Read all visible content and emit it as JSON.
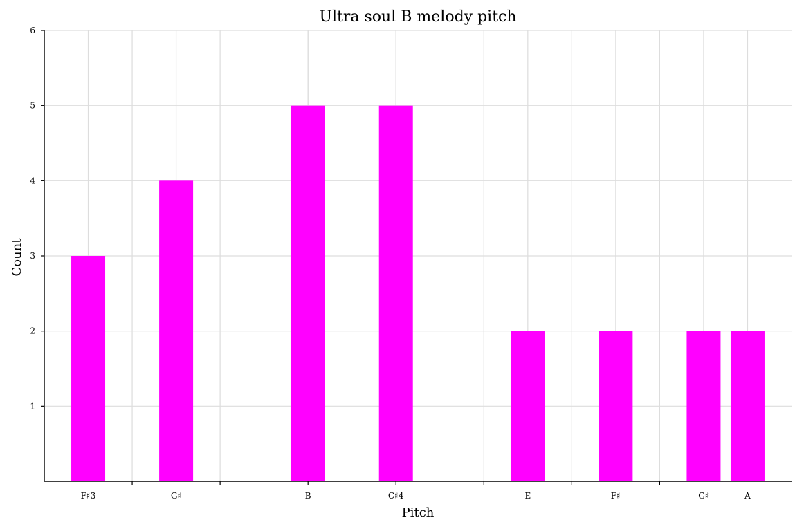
{
  "chart_data": {
    "type": "bar",
    "title": "Ultra soul B melody pitch",
    "xlabel": "Pitch",
    "ylabel": "Count",
    "ylim": [
      0,
      6
    ],
    "yticks": [
      1,
      2,
      3,
      4,
      5,
      6
    ],
    "x_range": [
      54,
      71
    ],
    "x_gridlines": [
      56,
      58,
      60,
      62,
      64,
      66,
      68
    ],
    "color": "#ff00ff",
    "grid": true,
    "bars": [
      {
        "label": "F♯3",
        "x": 55,
        "value": 3
      },
      {
        "label": "G♯",
        "x": 57,
        "value": 4
      },
      {
        "label": "B",
        "x": 60,
        "value": 5
      },
      {
        "label": "C♯4",
        "x": 62,
        "value": 5
      },
      {
        "label": "E",
        "x": 65,
        "value": 2
      },
      {
        "label": "F♯",
        "x": 67,
        "value": 2
      },
      {
        "label": "G♯",
        "x": 69,
        "value": 2
      },
      {
        "label": "A",
        "x": 70,
        "value": 2
      }
    ]
  }
}
